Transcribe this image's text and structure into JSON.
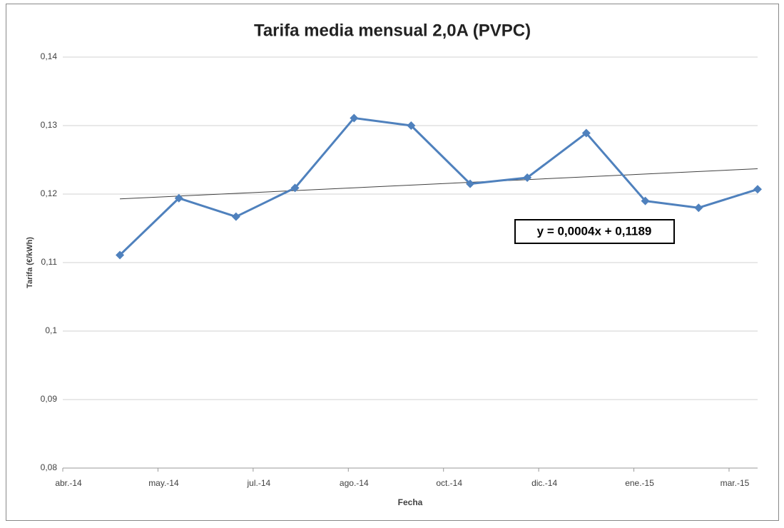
{
  "chart_data": {
    "type": "line",
    "title": "Tarifa media mensual 2,0A (PVPC)",
    "x_label": "Fecha",
    "y_label": "Tarifa (€/kWh)",
    "x": [
      "2014-05",
      "2014-06",
      "2014-07",
      "2014-08",
      "2014-09",
      "2014-10",
      "2014-11",
      "2014-12",
      "2015-01",
      "2015-02",
      "2015-03",
      "2015-04"
    ],
    "series": [
      {
        "name": "Tarifa",
        "color": "#4f81bd",
        "values": [
          0.1111,
          0.1194,
          0.1167,
          0.1209,
          0.1311,
          0.13,
          0.1215,
          0.1224,
          0.1289,
          0.119,
          0.118,
          0.1207
        ]
      }
    ],
    "trendline": {
      "label": "y = 0,0004x + 0,1189",
      "slope": 0.0004,
      "intercept": 0.1189,
      "color": "#404040"
    },
    "xlim": [
      "2014-04-01",
      "2015-04-01"
    ],
    "xticks": [
      {
        "value": "2014-04-01",
        "label": "abr.-14"
      },
      {
        "value": "2014-05-21",
        "label": "may.-14"
      },
      {
        "value": "2014-07-10",
        "label": "jul.-14"
      },
      {
        "value": "2014-08-29",
        "label": "ago.-14"
      },
      {
        "value": "2014-10-18",
        "label": "oct.-14"
      },
      {
        "value": "2014-12-07",
        "label": "dic.-14"
      },
      {
        "value": "2015-01-26",
        "label": "ene.-15"
      },
      {
        "value": "2015-03-17",
        "label": "mar.-15"
      }
    ],
    "ylim": [
      0.08,
      0.14
    ],
    "yticks": [
      {
        "value": 0.08,
        "label": "0,08"
      },
      {
        "value": 0.09,
        "label": "0,09"
      },
      {
        "value": 0.1,
        "label": "0,1"
      },
      {
        "value": 0.11,
        "label": "0,11"
      },
      {
        "value": 0.12,
        "label": "0,12"
      },
      {
        "value": 0.13,
        "label": "0,13"
      },
      {
        "value": 0.14,
        "label": "0,14"
      }
    ],
    "grid": true
  }
}
